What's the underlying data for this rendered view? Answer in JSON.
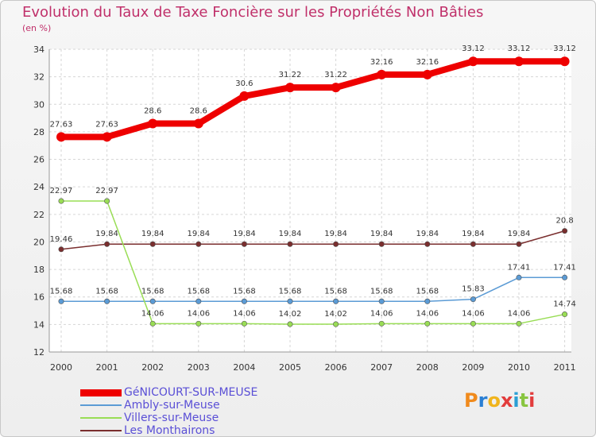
{
  "title": "Evolution du Taux de Taxe Foncière sur les Propriétés Non Bâties",
  "unit": "(en %)",
  "brand": "Proxiti",
  "chart_data": {
    "type": "line",
    "title": "Evolution du Taux de Taxe Foncière sur les Propriétés Non Bâties",
    "ylabel": "(en %)",
    "xlabel": "",
    "x": [
      "2000",
      "2001",
      "2002",
      "2003",
      "2004",
      "2005",
      "2006",
      "2007",
      "2008",
      "2009",
      "2010",
      "2011"
    ],
    "ylim": [
      12,
      34
    ],
    "yticks": [
      12,
      14,
      16,
      18,
      20,
      22,
      24,
      26,
      28,
      30,
      32,
      34
    ],
    "grid": true,
    "legend_position": "bottom-left",
    "series": [
      {
        "name": "GéNICOURT-SUR-MEUSE",
        "color": "#ee0000",
        "values": [
          27.63,
          27.63,
          28.6,
          28.6,
          30.6,
          31.22,
          31.22,
          32.16,
          32.16,
          33.12,
          33.12,
          33.12
        ],
        "labels": [
          "27.63",
          "27.63",
          "28.6",
          "28.6",
          "30.6",
          "31.22",
          "31.22",
          "32.16",
          "32.16",
          "33.12",
          "33.12",
          "33.12"
        ]
      },
      {
        "name": "Ambly-sur-Meuse",
        "color": "#5b9bd5",
        "values": [
          15.68,
          15.68,
          15.68,
          15.68,
          15.68,
          15.68,
          15.68,
          15.68,
          15.68,
          15.83,
          17.41,
          17.41
        ],
        "labels": [
          "15.68",
          "15.68",
          "15.68",
          "15.68",
          "15.68",
          "15.68",
          "15.68",
          "15.68",
          "15.68",
          "15.83",
          "17.41",
          "17.41"
        ]
      },
      {
        "name": "Villers-sur-Meuse",
        "color": "#99dd55",
        "values": [
          22.97,
          22.97,
          14.06,
          14.06,
          14.06,
          14.02,
          14.02,
          14.06,
          14.06,
          14.06,
          14.06,
          14.74
        ],
        "labels": [
          "22.97",
          "22.97",
          "14.06",
          "14.06",
          "14.06",
          "14.02",
          "14.02",
          "14.06",
          "14.06",
          "14.06",
          "14.06",
          "14.74"
        ]
      },
      {
        "name": "Les Monthairons",
        "color": "#7a2e2e",
        "values": [
          19.46,
          19.84,
          19.84,
          19.84,
          19.84,
          19.84,
          19.84,
          19.84,
          19.84,
          19.84,
          19.84,
          20.8
        ],
        "labels": [
          "19.46",
          "19.84",
          "19.84",
          "19.84",
          "19.84",
          "19.84",
          "19.84",
          "19.84",
          "19.84",
          "19.84",
          "19.84",
          "20.8"
        ]
      }
    ]
  }
}
